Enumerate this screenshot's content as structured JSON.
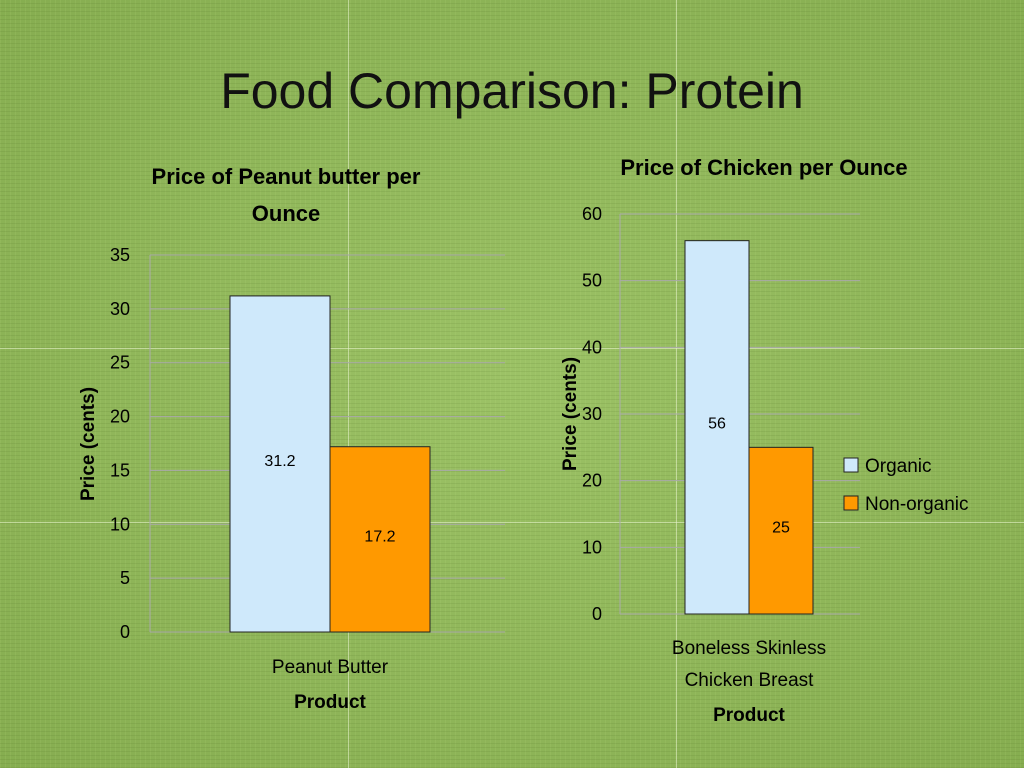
{
  "slide": {
    "title": "Food Comparison: Protein"
  },
  "colors": {
    "organic": "#cfe9fb",
    "non_organic": "#ff9900",
    "bar_stroke": "#222222",
    "gridline": "#a9a9a9"
  },
  "chart_data": [
    {
      "type": "bar",
      "title": "Price of Peanut butter per Ounce",
      "title_lines": [
        "Price of Peanut butter per",
        "Ounce"
      ],
      "xlabel": "Product",
      "ylabel": "Price (cents)",
      "categories": [
        "Peanut Butter"
      ],
      "category_lines": [
        [
          "Peanut Butter"
        ]
      ],
      "ylim": [
        0,
        35
      ],
      "yticks": [
        0,
        5,
        10,
        15,
        20,
        25,
        30,
        35
      ],
      "grid": true,
      "legend": null,
      "series": [
        {
          "name": "Organic",
          "values": [
            31.2
          ],
          "labels": [
            "31.2"
          ]
        },
        {
          "name": "Non-organic",
          "values": [
            17.2
          ],
          "labels": [
            "17.2"
          ]
        }
      ]
    },
    {
      "type": "bar",
      "title": "Price of Chicken per Ounce",
      "title_lines": [
        "Price of Chicken per Ounce"
      ],
      "xlabel": "Product",
      "ylabel": "Price (cents)",
      "categories": [
        "Boneless Skinless Chicken Breast"
      ],
      "category_lines": [
        [
          "Boneless Skinless",
          "Chicken Breast"
        ]
      ],
      "ylim": [
        0,
        60
      ],
      "yticks": [
        0,
        10,
        20,
        30,
        40,
        50,
        60
      ],
      "grid": true,
      "legend": "right",
      "series": [
        {
          "name": "Organic",
          "values": [
            56
          ],
          "labels": [
            "56"
          ]
        },
        {
          "name": "Non-organic",
          "values": [
            25
          ],
          "labels": [
            "25"
          ]
        }
      ]
    }
  ]
}
